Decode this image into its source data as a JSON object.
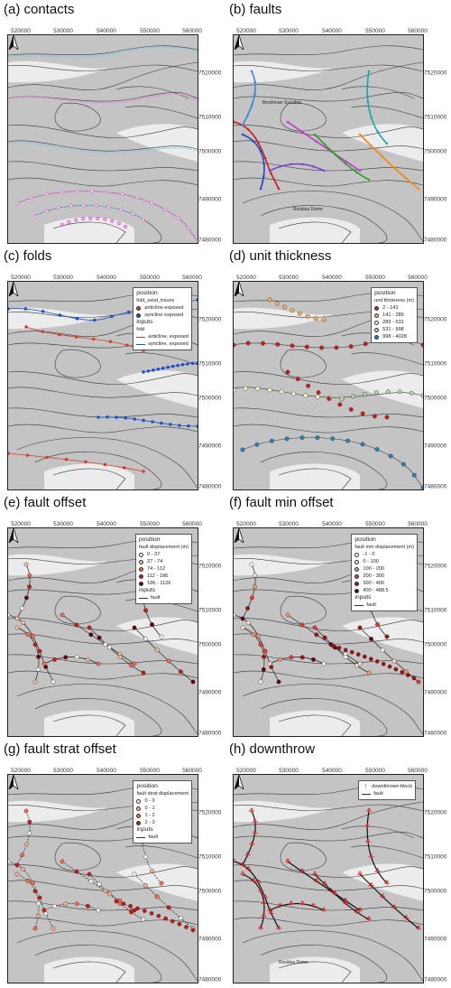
{
  "x_ticks": [
    "520000",
    "530000",
    "540000",
    "550000",
    "560000"
  ],
  "y_ticks": [
    "7520000",
    "7510000",
    "7500000",
    "7490000",
    "7480000"
  ],
  "places": {
    "brockman": "Brockman Syncline",
    "rocklea": "Rocklea Dome",
    "rocklea2": "Rocklea Dome"
  },
  "panels": [
    {
      "title": "(a) contacts"
    },
    {
      "title": "(b) faults"
    },
    {
      "title": "(c) folds",
      "legend": {
        "position": "position",
        "subtitle": "fold_axial_traces",
        "items": [
          "anticline exposed",
          "syncline exposed"
        ],
        "inputs": "inputs",
        "inputs_sub": "fold",
        "input_items": [
          "anticline, exposed",
          "syncline, exposed"
        ]
      }
    },
    {
      "title": "(d) unit thickness",
      "legend": {
        "position": "position",
        "subtitle": "unit thickness (m)",
        "items": [
          "2 - 141",
          "141 - 289",
          "289 - 531",
          "531 - 998",
          "998 - 4028"
        ]
      }
    },
    {
      "title": "(e) fault offset",
      "legend": {
        "position": "position",
        "subtitle": "fault displacement (m)",
        "items": [
          "0 - 37",
          "37 - 74",
          "74 - 112",
          "112 - 186",
          "186 - 1126"
        ],
        "inputs": "inputs",
        "input_items": [
          "fault"
        ]
      }
    },
    {
      "title": "(f) fault min offset",
      "legend": {
        "position": "position",
        "subtitle": "fault min displacement (m)",
        "items": [
          "-1 - 0",
          "0 - 100",
          "100 - 200",
          "200 - 300",
          "300 - 400",
          "400 - 488.5"
        ],
        "inputs": "inputs",
        "input_items": [
          "fault"
        ]
      }
    },
    {
      "title": "(g) fault strat offset",
      "legend": {
        "position": "position",
        "subtitle": "fault strat displacement",
        "items": [
          "0 - 0",
          "0 - 1",
          "1 - 2",
          "2 - 3"
        ],
        "inputs": "inputs",
        "input_items": [
          "fault"
        ]
      }
    },
    {
      "title": "(h) downthrow",
      "legend": {
        "items": [
          "downthrown block",
          "fault"
        ]
      }
    }
  ],
  "colors": {
    "thickness": [
      "#d7191c",
      "#fdae61",
      "#ffffbf",
      "#abdda4",
      "#2b83ba"
    ],
    "offset5": [
      "#fff5f0",
      "#fcbba1",
      "#fb6a4a",
      "#cb181d",
      "#67000d"
    ],
    "offset6": [
      "#fff5f0",
      "#fee0d2",
      "#fc9272",
      "#ef3b2c",
      "#a50f15",
      "#67000d"
    ],
    "offset4": [
      "#fff5f0",
      "#fcae91",
      "#fb6a4a",
      "#cb181d"
    ],
    "anticline": "#d43b2d",
    "syncline": "#1f4fc2"
  }
}
